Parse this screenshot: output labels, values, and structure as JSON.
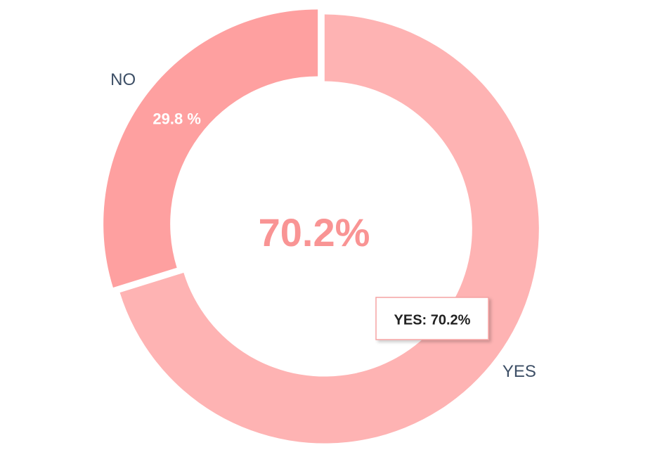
{
  "chart_data": {
    "type": "donut",
    "categories": [
      "YES",
      "NO"
    ],
    "values": [
      70.2,
      29.8
    ],
    "value_labels": [
      null,
      "29.8 %"
    ],
    "colors": [
      "#feb3b3",
      "#fea0a0"
    ],
    "center_label": "70.2%",
    "tooltip": "YES: 70.2%"
  }
}
